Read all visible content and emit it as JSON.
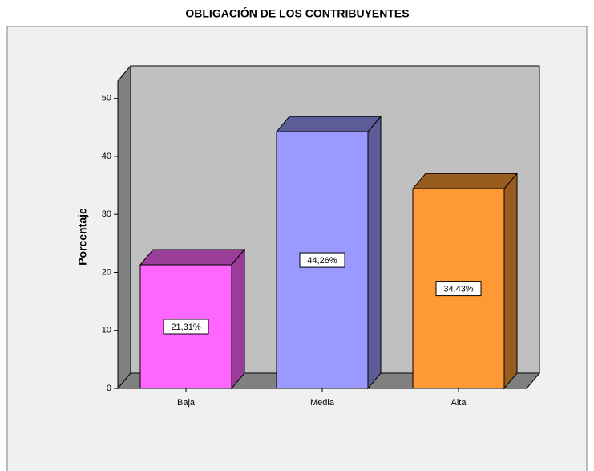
{
  "chart_data": {
    "type": "bar",
    "title": "OBLIGACIÓN DE LOS CONTRIBUYENTES",
    "y_axis_label": "Porcentaje",
    "categories": [
      "Baja",
      "Media",
      "Alta"
    ],
    "values": [
      21.31,
      44.26,
      34.43
    ],
    "value_labels": [
      "21,31%",
      "44,26%",
      "34,43%"
    ],
    "colors": [
      "#ff66ff",
      "#9999ff",
      "#ff9933"
    ],
    "side_colors": [
      "#993d99",
      "#5c5c99",
      "#995c1f"
    ],
    "ylim": [
      0,
      53
    ],
    "yticks": [
      0,
      10,
      20,
      30,
      40,
      50
    ]
  }
}
